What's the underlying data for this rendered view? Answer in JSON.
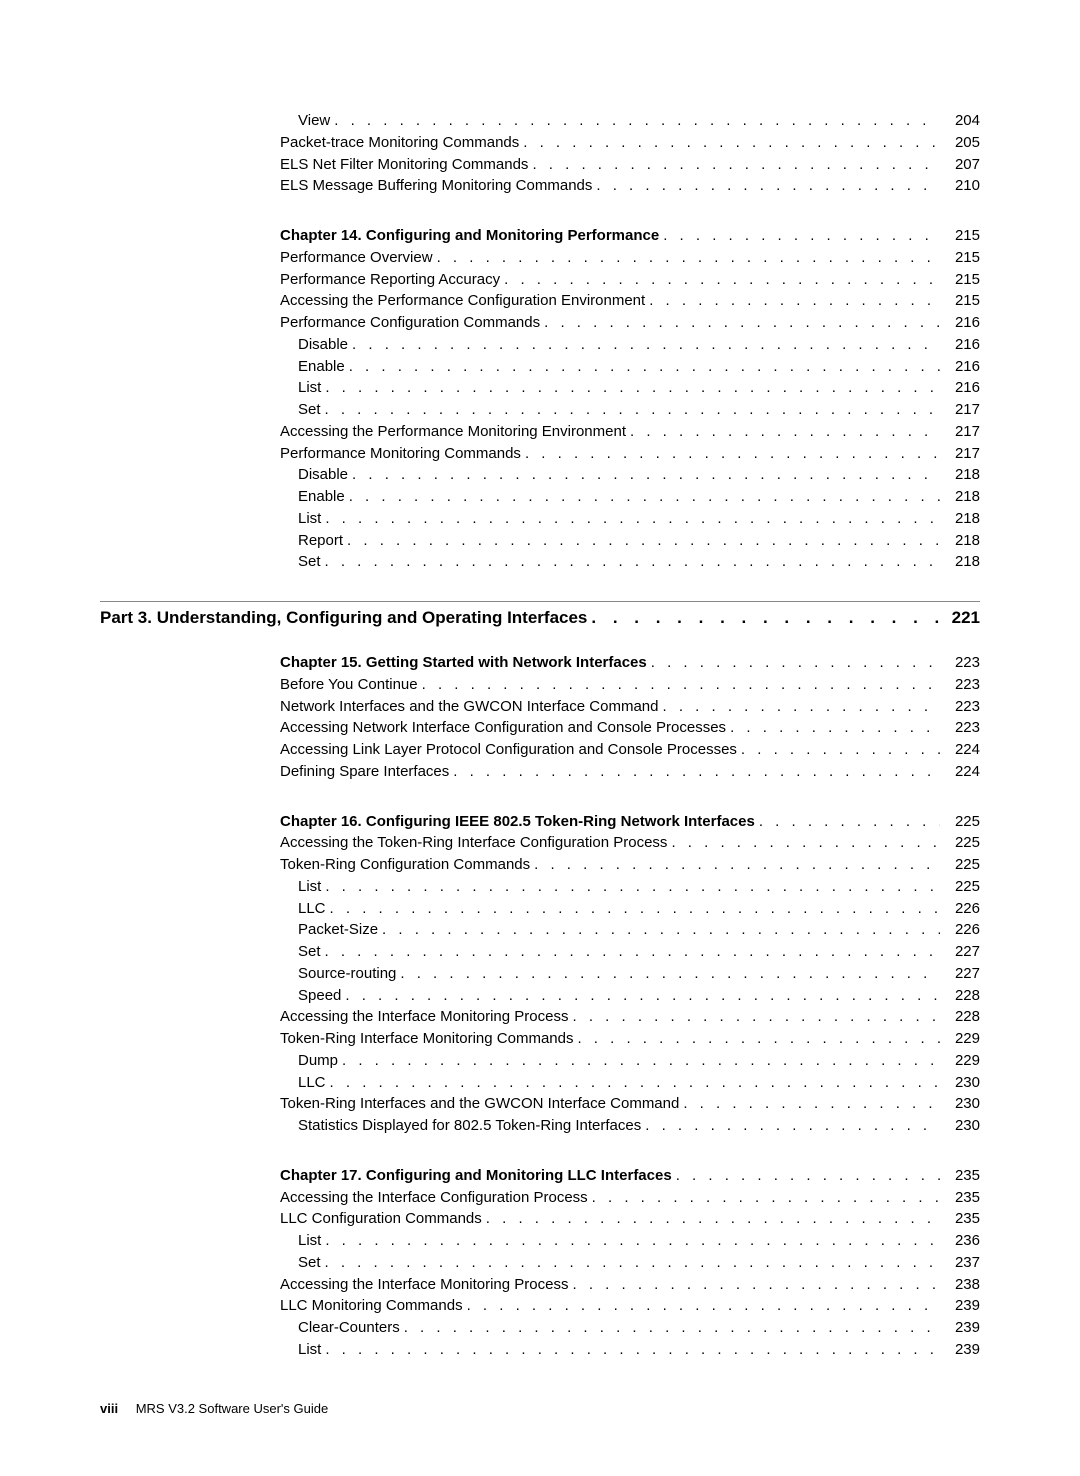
{
  "blocks": [
    {
      "type": "group",
      "items": [
        {
          "title": "View",
          "page": "204",
          "indent": 1
        },
        {
          "title": "Packet-trace Monitoring Commands",
          "page": "205"
        },
        {
          "title": "ELS Net Filter Monitoring Commands",
          "page": "207"
        },
        {
          "title": "ELS Message Buffering Monitoring Commands",
          "page": "210"
        }
      ]
    },
    {
      "type": "group",
      "items": [
        {
          "title": "Chapter 14. Configuring and Monitoring Performance",
          "page": "215",
          "bold": true
        },
        {
          "title": "Performance Overview",
          "page": "215"
        },
        {
          "title": "Performance Reporting Accuracy",
          "page": "215"
        },
        {
          "title": "Accessing the Performance Configuration Environment",
          "page": "215"
        },
        {
          "title": "Performance Configuration Commands",
          "page": "216"
        },
        {
          "title": "Disable",
          "page": "216",
          "indent": 1
        },
        {
          "title": "Enable",
          "page": "216",
          "indent": 1
        },
        {
          "title": "List",
          "page": "216",
          "indent": 1
        },
        {
          "title": "Set",
          "page": "217",
          "indent": 1
        },
        {
          "title": "Accessing the Performance Monitoring Environment",
          "page": "217"
        },
        {
          "title": "Performance Monitoring Commands",
          "page": "217"
        },
        {
          "title": "Disable",
          "page": "218",
          "indent": 1
        },
        {
          "title": "Enable",
          "page": "218",
          "indent": 1
        },
        {
          "title": "List",
          "page": "218",
          "indent": 1
        },
        {
          "title": "Report",
          "page": "218",
          "indent": 1
        },
        {
          "title": "Set",
          "page": "218",
          "indent": 1
        }
      ]
    },
    {
      "type": "part",
      "title": "Part 3. Understanding, Configuring and Operating Interfaces",
      "page": "221"
    },
    {
      "type": "group",
      "items": [
        {
          "title": "Chapter 15. Getting Started with Network Interfaces",
          "page": "223",
          "bold": true
        },
        {
          "title": "Before You Continue",
          "page": "223"
        },
        {
          "title": "Network Interfaces and the GWCON Interface Command",
          "page": "223"
        },
        {
          "title": "Accessing Network Interface Configuration and Console Processes",
          "page": "223"
        },
        {
          "title": "Accessing Link Layer Protocol Configuration and Console Processes",
          "page": "224"
        },
        {
          "title": "Defining Spare Interfaces",
          "page": "224"
        }
      ]
    },
    {
      "type": "group",
      "items": [
        {
          "title": "Chapter 16. Configuring IEEE 802.5 Token-Ring Network Interfaces",
          "page": "225",
          "bold": true
        },
        {
          "title": "Accessing the Token-Ring Interface Configuration Process",
          "page": "225"
        },
        {
          "title": "Token-Ring Configuration Commands",
          "page": "225"
        },
        {
          "title": "List",
          "page": "225",
          "indent": 1
        },
        {
          "title": "LLC",
          "page": "226",
          "indent": 1
        },
        {
          "title": "Packet-Size",
          "page": "226",
          "indent": 1
        },
        {
          "title": "Set",
          "page": "227",
          "indent": 1
        },
        {
          "title": "Source-routing",
          "page": "227",
          "indent": 1
        },
        {
          "title": "Speed",
          "page": "228",
          "indent": 1
        },
        {
          "title": "Accessing the Interface Monitoring Process",
          "page": "228"
        },
        {
          "title": "Token-Ring Interface Monitoring Commands",
          "page": "229"
        },
        {
          "title": "Dump",
          "page": "229",
          "indent": 1
        },
        {
          "title": "LLC",
          "page": "230",
          "indent": 1
        },
        {
          "title": "Token-Ring Interfaces and the GWCON Interface Command",
          "page": "230"
        },
        {
          "title": "Statistics Displayed for 802.5 Token-Ring Interfaces",
          "page": "230",
          "indent": 1
        }
      ]
    },
    {
      "type": "group",
      "items": [
        {
          "title": "Chapter 17. Configuring and Monitoring LLC Interfaces",
          "page": "235",
          "bold": true
        },
        {
          "title": "Accessing the Interface Configuration Process",
          "page": "235"
        },
        {
          "title": "LLC Configuration Commands",
          "page": "235"
        },
        {
          "title": "List",
          "page": "236",
          "indent": 1
        },
        {
          "title": "Set",
          "page": "237",
          "indent": 1
        },
        {
          "title": "Accessing the Interface Monitoring Process",
          "page": "238"
        },
        {
          "title": "LLC Monitoring Commands",
          "page": "239"
        },
        {
          "title": "Clear-Counters",
          "page": "239",
          "indent": 1
        },
        {
          "title": "List",
          "page": "239",
          "indent": 1
        }
      ]
    }
  ],
  "footer": {
    "page_number": "viii",
    "doc_title": "MRS V3.2 Software User's Guide"
  },
  "style": {
    "dot_fill": ". . . . . . . . . . . . . . . . . . . . . . . . . . . . . . . . . . . . . . . . . . . . . . . . . . . . . . . . . . . . . . . . . . . . . . . . . . . . . . . . . . . . . . . . . . . . . . . . . . . ."
  }
}
